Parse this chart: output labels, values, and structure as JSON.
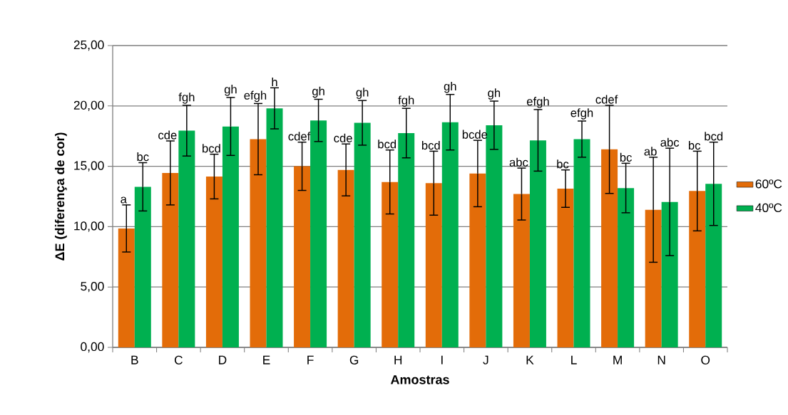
{
  "chart_data": {
    "type": "bar",
    "categories": [
      "B",
      "C",
      "D",
      "E",
      "F",
      "G",
      "H",
      "I",
      "J",
      "K",
      "L",
      "M",
      "N",
      "O"
    ],
    "series": [
      {
        "name": "60ºC",
        "color": "#e36c09",
        "values": [
          9.85,
          14.45,
          14.15,
          17.25,
          15.0,
          14.7,
          13.7,
          13.6,
          14.4,
          12.7,
          13.15,
          16.4,
          11.4,
          12.95
        ],
        "errors": [
          1.95,
          2.65,
          1.85,
          2.95,
          2.0,
          2.15,
          2.65,
          2.65,
          2.75,
          2.15,
          1.55,
          3.65,
          4.35,
          3.3
        ]
      },
      {
        "name": "40ºC",
        "color": "#00b050",
        "values": [
          13.3,
          17.95,
          18.3,
          19.8,
          18.8,
          18.6,
          17.75,
          18.65,
          18.4,
          17.15,
          17.25,
          13.2,
          12.05,
          13.55
        ],
        "errors": [
          2.0,
          2.1,
          2.4,
          1.7,
          1.75,
          1.85,
          2.05,
          2.3,
          2.0,
          2.55,
          1.5,
          2.05,
          4.45,
          3.45
        ]
      }
    ],
    "xlabel": "Amostras",
    "ylabel": "ΔE (diferença de cor)",
    "ylim": [
      0,
      25
    ],
    "yticks": [
      {
        "value": 0,
        "label": "0,00"
      },
      {
        "value": 5,
        "label": "5,00"
      },
      {
        "value": 10,
        "label": "10,00"
      },
      {
        "value": 15,
        "label": "15,00"
      },
      {
        "value": 20,
        "label": "20,00"
      },
      {
        "value": 25,
        "label": "25,00"
      }
    ],
    "grid": "y",
    "legend": "right",
    "annotations": [
      "a",
      "bc",
      "cde",
      "fgh",
      "bcd",
      "gh",
      "efgh",
      "h",
      "cdef",
      "gh",
      "cde",
      "gh",
      "bcd",
      "fgh",
      "bcd",
      "gh",
      "bcde",
      "gh",
      "abc",
      "efgh",
      "bc",
      "efgh",
      "cdef",
      "bc",
      "ab",
      "abc",
      "bc",
      "bcd"
    ]
  }
}
